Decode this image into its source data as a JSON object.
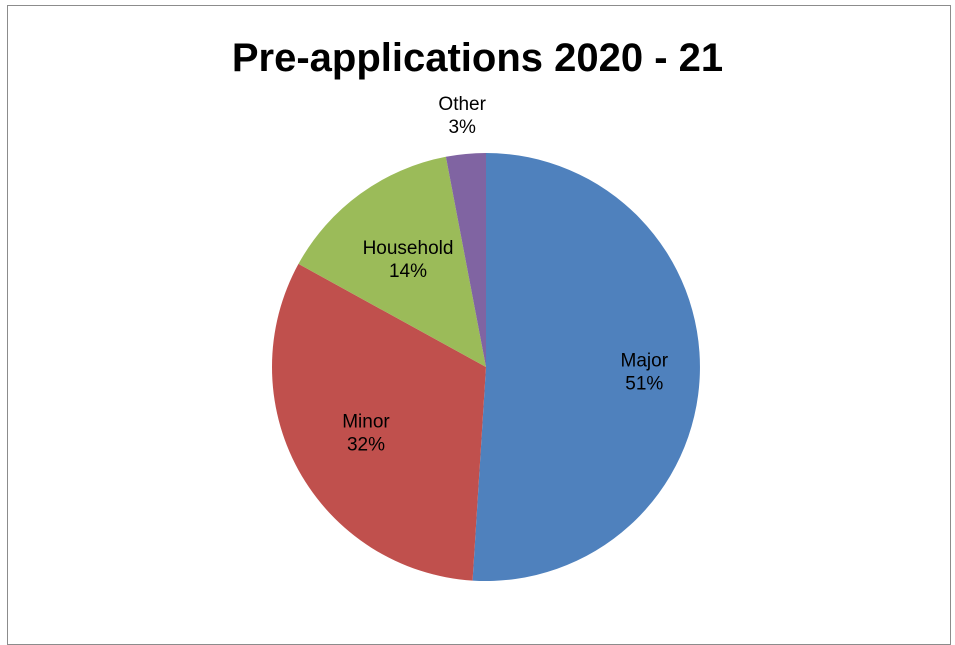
{
  "chart_data": {
    "type": "pie",
    "title": "Pre-applications 2020 - 21",
    "categories": [
      "Major",
      "Minor",
      "Household",
      "Other"
    ],
    "values": [
      51,
      32,
      14,
      3
    ],
    "labels": [
      "51%",
      "32%",
      "14%",
      "3%"
    ],
    "colors": [
      "#4f81bd",
      "#c0504d",
      "#9bbb59",
      "#8064a2"
    ],
    "start_angle": "12 o'clock, clockwise",
    "legend": "none",
    "data_labels": "category and percentage"
  }
}
